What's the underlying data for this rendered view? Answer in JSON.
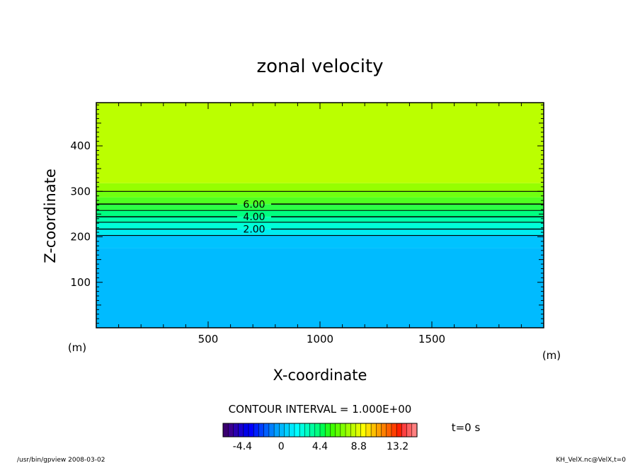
{
  "chart_data": {
    "type": "heatmap",
    "title": "zonal velocity",
    "xlabel": "X-coordinate",
    "ylabel": "Z-coordinate",
    "x_unit_label": "(m)",
    "y_unit_label": "(m)",
    "xlim": [
      0,
      2000
    ],
    "ylim": [
      0,
      495
    ],
    "x_ticks": [
      500,
      1000,
      1500
    ],
    "y_ticks": [
      100,
      200,
      300,
      400
    ],
    "grid": false,
    "field_bands": [
      {
        "z0": 0,
        "z1": 175,
        "color": "#00bbff"
      },
      {
        "z0": 175,
        "z1": 203,
        "color": "#00c3ff"
      },
      {
        "z0": 203,
        "z1": 217,
        "color": "#00ecf0"
      },
      {
        "z0": 217,
        "z1": 232,
        "color": "#00ffd8"
      },
      {
        "z0": 232,
        "z1": 244,
        "color": "#00ffaa"
      },
      {
        "z0": 244,
        "z1": 258,
        "color": "#00ff80"
      },
      {
        "z0": 258,
        "z1": 272,
        "color": "#2cff44"
      },
      {
        "z0": 272,
        "z1": 287,
        "color": "#50ff20"
      },
      {
        "z0": 287,
        "z1": 300,
        "color": "#70ff10"
      },
      {
        "z0": 300,
        "z1": 318,
        "color": "#96ff00"
      },
      {
        "z0": 318,
        "z1": 495,
        "color": "#bbff00"
      }
    ],
    "contours": [
      {
        "value": 1.0,
        "z": 203,
        "label": ""
      },
      {
        "value": 2.0,
        "z": 217,
        "label": "2.00"
      },
      {
        "value": 3.0,
        "z": 232,
        "label": ""
      },
      {
        "value": 4.0,
        "z": 244,
        "label": "4.00"
      },
      {
        "value": 5.0,
        "z": 258,
        "label": ""
      },
      {
        "value": 6.0,
        "z": 272,
        "label": "6.00"
      },
      {
        "value": 7.0,
        "z": 300,
        "label": ""
      }
    ],
    "contour_interval_text": "CONTOUR INTERVAL = 1.000E+00",
    "time_text": "t=0 s",
    "colorbar": {
      "vmin": -6.6,
      "vmax": 15.4,
      "tick_values": [
        -4.4,
        0,
        4.4,
        8.8,
        13.2
      ],
      "tick_labels": [
        "-4.4",
        "0",
        "4.4",
        "8.8",
        "13.2"
      ],
      "colors": [
        "#3a0070",
        "#3a0090",
        "#2a00b0",
        "#1800d0",
        "#0000e8",
        "#0000ff",
        "#0020ff",
        "#0040ff",
        "#0060ff",
        "#0080ff",
        "#00a0ff",
        "#00b8ff",
        "#00d0ff",
        "#00e8ff",
        "#00ffff",
        "#00ffe0",
        "#00ffc0",
        "#00ffa0",
        "#00ff80",
        "#00ff50",
        "#20ff20",
        "#40ff00",
        "#60ff00",
        "#80ff00",
        "#a0ff00",
        "#c0ff00",
        "#e0ff00",
        "#ffff00",
        "#ffe000",
        "#ffc000",
        "#ffa000",
        "#ff8000",
        "#ff6000",
        "#ff4000",
        "#ff2000",
        "#ff4040",
        "#ff6060",
        "#ff8080"
      ]
    }
  },
  "footer": {
    "left": "/usr/bin/gpview  2008-03-02",
    "right": "KH_VelX.nc@VelX,t=0"
  }
}
